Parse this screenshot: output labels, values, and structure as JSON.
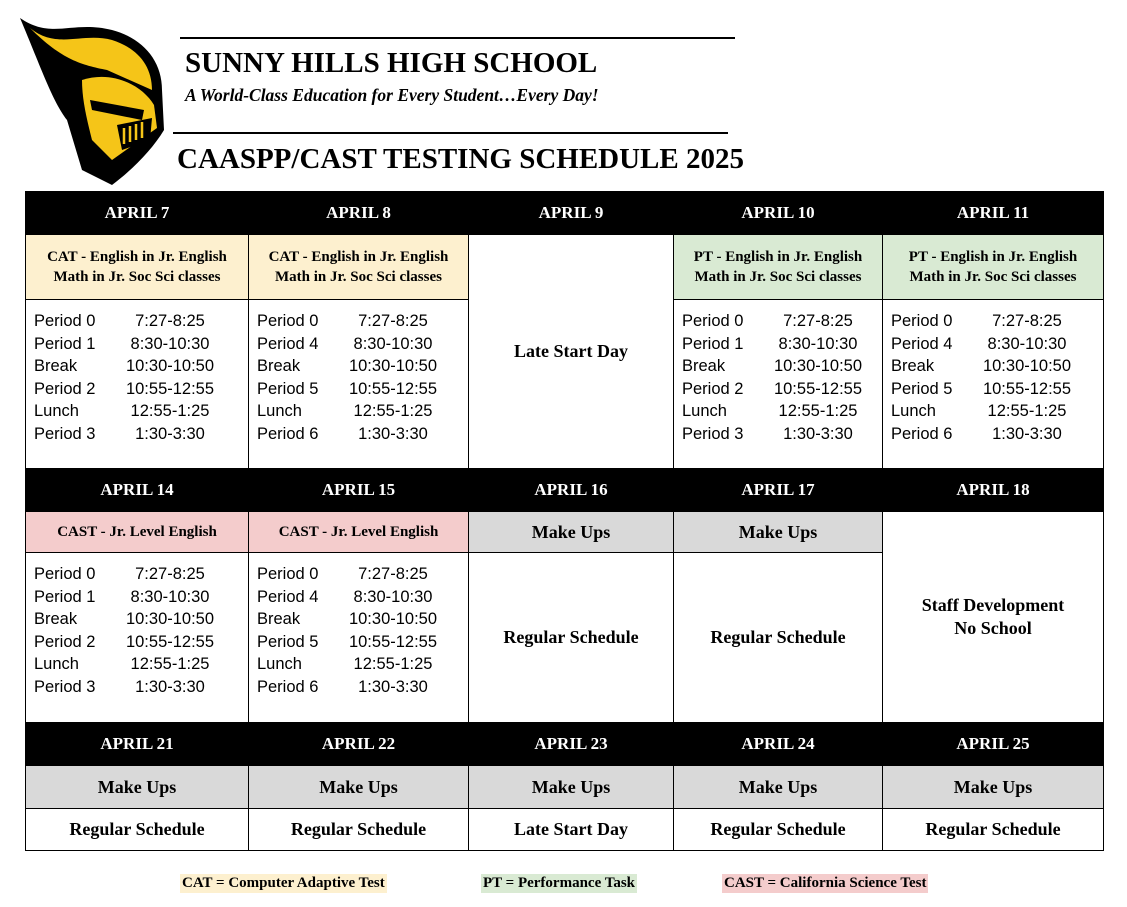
{
  "header": {
    "school_name": "SUNNY HILLS HIGH SCHOOL",
    "motto": "A World-Class Education for Every Student…Every Day!",
    "title": "CAASPP/CAST TESTING SCHEDULE 2025",
    "logo": "knight-helmet-logo"
  },
  "colors": {
    "cat": "#fdf0cf",
    "pt": "#d9ead3",
    "cast": "#f4cccc",
    "makeups": "#d9d9d9",
    "header_bg": "#000000"
  },
  "schedules": {
    "odd": [
      [
        "Period 0",
        "7:27-8:25"
      ],
      [
        "Period 1",
        "8:30-10:30"
      ],
      [
        "Break",
        "10:30-10:50"
      ],
      [
        "Period 2",
        "10:55-12:55"
      ],
      [
        "Lunch",
        "12:55-1:25"
      ],
      [
        "Period 3",
        "1:30-3:30"
      ]
    ],
    "even": [
      [
        "Period 0",
        "7:27-8:25"
      ],
      [
        "Period 4",
        "8:30-10:30"
      ],
      [
        "Break",
        "10:30-10:50"
      ],
      [
        "Period 5",
        "10:55-12:55"
      ],
      [
        "Lunch",
        "12:55-1:25"
      ],
      [
        "Period 6",
        "1:30-3:30"
      ]
    ]
  },
  "weeks": [
    {
      "days": [
        {
          "date": "APRIL 7",
          "test": [
            "CAT -  English in Jr. English",
            "Math in Jr. Soc Sci classes"
          ],
          "test_type": "cat",
          "schedule": "odd"
        },
        {
          "date": "APRIL 8",
          "test": [
            "CAT -  English in Jr. English",
            "Math in Jr. Soc Sci classes"
          ],
          "test_type": "cat",
          "schedule": "even"
        },
        {
          "date": "APRIL 9",
          "merged": [
            "Late Start Day"
          ]
        },
        {
          "date": "APRIL 10",
          "test": [
            "PT - English in Jr. English",
            "Math in Jr. Soc Sci classes"
          ],
          "test_type": "pt",
          "schedule": "odd"
        },
        {
          "date": "APRIL 11",
          "test": [
            "PT - English in Jr. English",
            "Math in Jr. Soc Sci classes"
          ],
          "test_type": "pt",
          "schedule": "even"
        }
      ]
    },
    {
      "days": [
        {
          "date": "APRIL 14",
          "test": [
            "CAST - Jr. Level English"
          ],
          "test_type": "cast",
          "schedule": "odd"
        },
        {
          "date": "APRIL 15",
          "test": [
            "CAST - Jr. Level English"
          ],
          "test_type": "cast",
          "schedule": "even"
        },
        {
          "date": "APRIL 16",
          "test": [
            "Make Ups"
          ],
          "test_type": "mu",
          "note": "Regular Schedule"
        },
        {
          "date": "APRIL 17",
          "test": [
            "Make Ups"
          ],
          "test_type": "mu",
          "note": "Regular Schedule"
        },
        {
          "date": "APRIL 18",
          "merged": [
            "Staff Development",
            "No School"
          ]
        }
      ]
    },
    {
      "days": [
        {
          "date": "APRIL 21",
          "test": [
            "Make Ups"
          ],
          "test_type": "mu",
          "note": "Regular Schedule"
        },
        {
          "date": "APRIL 22",
          "test": [
            "Make Ups"
          ],
          "test_type": "mu",
          "note": "Regular Schedule"
        },
        {
          "date": "APRIL 23",
          "test": [
            "Make Ups"
          ],
          "test_type": "mu",
          "note": "Late Start Day"
        },
        {
          "date": "APRIL 24",
          "test": [
            "Make Ups"
          ],
          "test_type": "mu",
          "note": "Regular Schedule"
        },
        {
          "date": "APRIL 25",
          "test": [
            "Make Ups"
          ],
          "test_type": "mu",
          "note": "Regular Schedule"
        }
      ]
    }
  ],
  "legend": {
    "cat": "CAT = Computer Adaptive Test",
    "pt": "PT = Performance Task",
    "cast": "CAST = California Science Test"
  }
}
